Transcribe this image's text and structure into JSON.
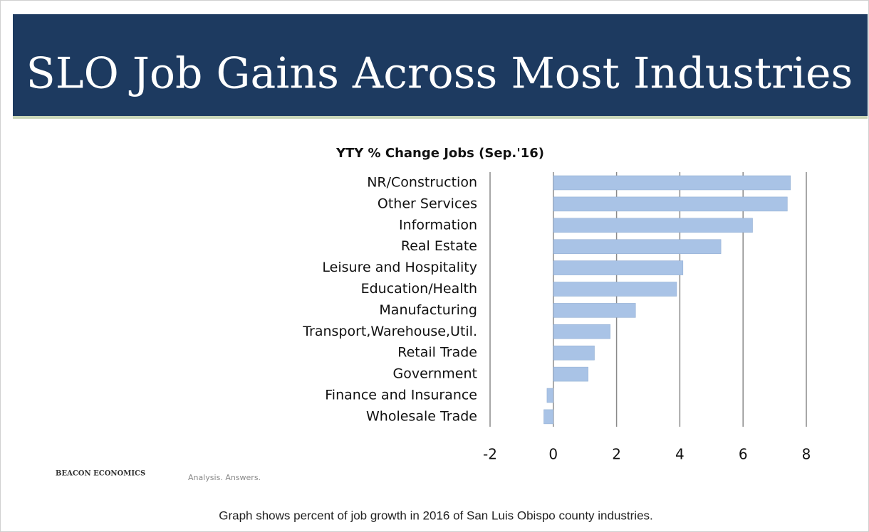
{
  "header": {
    "title": "SLO Job Gains Across Most Industries"
  },
  "chart_data": {
    "type": "barh",
    "title": "YTY % Change Jobs (Sep.'16)",
    "categories": [
      "NR/Construction",
      "Other Services",
      "Information",
      "Real Estate",
      "Leisure and Hospitality",
      "Education/Health",
      "Manufacturing",
      "Transport,Warehouse,Util.",
      "Retail Trade",
      "Government",
      "Finance and Insurance",
      "Wholesale Trade"
    ],
    "values": [
      7.5,
      7.4,
      6.3,
      5.3,
      4.1,
      3.9,
      2.6,
      1.8,
      1.3,
      1.1,
      -0.2,
      -0.3
    ],
    "color": "#a9c3e6",
    "xlim": [
      -2,
      8
    ],
    "xticks": [
      -2,
      0,
      2,
      4,
      6,
      8
    ],
    "grid": true
  },
  "footer": {
    "brand": "BEACON ECONOMICS",
    "tagline": "Analysis. Answers.",
    "caption": "Graph shows percent of job growth in 2016 of San Luis Obispo county industries."
  }
}
